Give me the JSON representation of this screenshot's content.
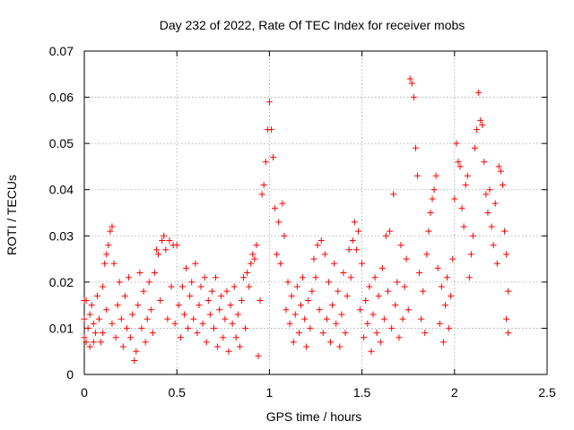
{
  "chart_data": {
    "type": "scatter",
    "title": "Day 232 of 2022, Rate Of TEC Index for receiver mobs",
    "xlabel": "GPS time / hours",
    "ylabel": "ROTI / TECUs",
    "xlim": [
      0,
      2.5
    ],
    "ylim": [
      0,
      0.07
    ],
    "xticks": [
      0,
      0.5,
      1,
      1.5,
      2,
      2.5
    ],
    "xtick_labels": [
      "0",
      "0.5",
      "1",
      "1.5",
      "2",
      "2.5"
    ],
    "yticks": [
      0,
      0.01,
      0.02,
      0.03,
      0.04,
      0.05,
      0.06,
      0.07
    ],
    "ytick_labels": [
      "0",
      "0.01",
      "0.02",
      "0.03",
      "0.04",
      "0.05",
      "0.06",
      "0.07"
    ],
    "grid": true,
    "marker": "plus",
    "color": "#ff0000",
    "series": [
      {
        "points": [
          [
            0.0,
            0.016
          ],
          [
            0.0,
            0.012
          ],
          [
            0.0,
            0.008
          ],
          [
            0.01,
            0.007
          ],
          [
            0.01,
            0.016
          ],
          [
            0.02,
            0.01
          ],
          [
            0.03,
            0.006
          ],
          [
            0.03,
            0.013
          ],
          [
            0.04,
            0.015
          ],
          [
            0.05,
            0.007
          ],
          [
            0.05,
            0.011
          ],
          [
            0.06,
            0.009
          ],
          [
            0.07,
            0.017
          ],
          [
            0.08,
            0.012
          ],
          [
            0.09,
            0.007
          ],
          [
            0.1,
            0.019
          ],
          [
            0.1,
            0.009
          ],
          [
            0.11,
            0.024
          ],
          [
            0.12,
            0.026
          ],
          [
            0.12,
            0.014
          ],
          [
            0.13,
            0.028
          ],
          [
            0.14,
            0.031
          ],
          [
            0.15,
            0.032
          ],
          [
            0.15,
            0.011
          ],
          [
            0.16,
            0.024
          ],
          [
            0.17,
            0.008
          ],
          [
            0.18,
            0.015
          ],
          [
            0.19,
            0.02
          ],
          [
            0.2,
            0.012
          ],
          [
            0.21,
            0.006
          ],
          [
            0.22,
            0.017
          ],
          [
            0.23,
            0.01
          ],
          [
            0.24,
            0.021
          ],
          [
            0.25,
            0.008
          ],
          [
            0.26,
            0.013
          ],
          [
            0.27,
            0.003
          ],
          [
            0.28,
            0.005
          ],
          [
            0.29,
            0.015
          ],
          [
            0.3,
            0.022
          ],
          [
            0.31,
            0.01
          ],
          [
            0.32,
            0.018
          ],
          [
            0.33,
            0.007
          ],
          [
            0.34,
            0.012
          ],
          [
            0.35,
            0.02
          ],
          [
            0.36,
            0.014
          ],
          [
            0.37,
            0.009
          ],
          [
            0.38,
            0.022
          ],
          [
            0.39,
            0.027
          ],
          [
            0.4,
            0.026
          ],
          [
            0.41,
            0.016
          ],
          [
            0.42,
            0.029
          ],
          [
            0.43,
            0.03
          ],
          [
            0.44,
            0.027
          ],
          [
            0.45,
            0.012
          ],
          [
            0.46,
            0.029
          ],
          [
            0.47,
            0.019
          ],
          [
            0.48,
            0.028
          ],
          [
            0.49,
            0.011
          ],
          [
            0.5,
            0.028
          ],
          [
            0.51,
            0.015
          ],
          [
            0.52,
            0.008
          ],
          [
            0.53,
            0.019
          ],
          [
            0.54,
            0.013
          ],
          [
            0.55,
            0.023
          ],
          [
            0.56,
            0.01
          ],
          [
            0.57,
            0.017
          ],
          [
            0.58,
            0.02
          ],
          [
            0.59,
            0.012
          ],
          [
            0.6,
            0.024
          ],
          [
            0.61,
            0.009
          ],
          [
            0.62,
            0.015
          ],
          [
            0.63,
            0.019
          ],
          [
            0.64,
            0.011
          ],
          [
            0.65,
            0.021
          ],
          [
            0.66,
            0.007
          ],
          [
            0.67,
            0.016
          ],
          [
            0.68,
            0.013
          ],
          [
            0.69,
            0.018
          ],
          [
            0.7,
            0.01
          ],
          [
            0.71,
            0.021
          ],
          [
            0.72,
            0.006
          ],
          [
            0.73,
            0.014
          ],
          [
            0.74,
            0.017
          ],
          [
            0.75,
            0.008
          ],
          [
            0.76,
            0.012
          ],
          [
            0.77,
            0.018
          ],
          [
            0.78,
            0.005
          ],
          [
            0.79,
            0.015
          ],
          [
            0.8,
            0.011
          ],
          [
            0.81,
            0.019
          ],
          [
            0.82,
            0.008
          ],
          [
            0.83,
            0.013
          ],
          [
            0.84,
            0.006
          ],
          [
            0.85,
            0.016
          ],
          [
            0.86,
            0.021
          ],
          [
            0.87,
            0.01
          ],
          [
            0.88,
            0.022
          ],
          [
            0.89,
            0.019
          ],
          [
            0.9,
            0.024
          ],
          [
            0.91,
            0.026
          ],
          [
            0.92,
            0.025
          ],
          [
            0.93,
            0.028
          ],
          [
            0.94,
            0.004
          ],
          [
            0.95,
            0.016
          ],
          [
            0.96,
            0.039
          ],
          [
            0.97,
            0.041
          ],
          [
            0.98,
            0.046
          ],
          [
            0.99,
            0.053
          ],
          [
            1.0,
            0.059
          ],
          [
            1.01,
            0.053
          ],
          [
            1.02,
            0.047
          ],
          [
            1.03,
            0.036
          ],
          [
            1.04,
            0.026
          ],
          [
            1.05,
            0.033
          ],
          [
            1.06,
            0.024
          ],
          [
            1.07,
            0.037
          ],
          [
            1.08,
            0.03
          ],
          [
            1.09,
            0.014
          ],
          [
            1.1,
            0.02
          ],
          [
            1.11,
            0.011
          ],
          [
            1.12,
            0.017
          ],
          [
            1.13,
            0.007
          ],
          [
            1.14,
            0.013
          ],
          [
            1.15,
            0.019
          ],
          [
            1.16,
            0.009
          ],
          [
            1.17,
            0.015
          ],
          [
            1.18,
            0.021
          ],
          [
            1.19,
            0.012
          ],
          [
            1.2,
            0.006
          ],
          [
            1.21,
            0.016
          ],
          [
            1.22,
            0.01
          ],
          [
            1.23,
            0.018
          ],
          [
            1.24,
            0.025
          ],
          [
            1.25,
            0.021
          ],
          [
            1.26,
            0.028
          ],
          [
            1.27,
            0.014
          ],
          [
            1.28,
            0.029
          ],
          [
            1.29,
            0.009
          ],
          [
            1.3,
            0.026
          ],
          [
            1.31,
            0.012
          ],
          [
            1.32,
            0.02
          ],
          [
            1.33,
            0.007
          ],
          [
            1.34,
            0.015
          ],
          [
            1.35,
            0.024
          ],
          [
            1.36,
            0.011
          ],
          [
            1.37,
            0.018
          ],
          [
            1.38,
            0.006
          ],
          [
            1.39,
            0.013
          ],
          [
            1.4,
            0.022
          ],
          [
            1.41,
            0.009
          ],
          [
            1.42,
            0.017
          ],
          [
            1.43,
            0.027
          ],
          [
            1.44,
            0.021
          ],
          [
            1.45,
            0.029
          ],
          [
            1.46,
            0.033
          ],
          [
            1.47,
            0.027
          ],
          [
            1.48,
            0.031
          ],
          [
            1.49,
            0.014
          ],
          [
            1.5,
            0.024
          ],
          [
            1.51,
            0.008
          ],
          [
            1.52,
            0.016
          ],
          [
            1.53,
            0.011
          ],
          [
            1.54,
            0.019
          ],
          [
            1.55,
            0.005
          ],
          [
            1.56,
            0.013
          ],
          [
            1.57,
            0.021
          ],
          [
            1.58,
            0.009
          ],
          [
            1.59,
            0.017
          ],
          [
            1.6,
            0.007
          ],
          [
            1.61,
            0.023
          ],
          [
            1.62,
            0.012
          ],
          [
            1.63,
            0.03
          ],
          [
            1.64,
            0.018
          ],
          [
            1.65,
            0.031
          ],
          [
            1.66,
            0.01
          ],
          [
            1.67,
            0.039
          ],
          [
            1.68,
            0.015
          ],
          [
            1.69,
            0.02
          ],
          [
            1.7,
            0.008
          ],
          [
            1.71,
            0.028
          ],
          [
            1.72,
            0.012
          ],
          [
            1.73,
            0.019
          ],
          [
            1.74,
            0.025
          ],
          [
            1.75,
            0.014
          ],
          [
            1.76,
            0.064
          ],
          [
            1.77,
            0.063
          ],
          [
            1.78,
            0.06
          ],
          [
            1.79,
            0.049
          ],
          [
            1.8,
            0.043
          ],
          [
            1.81,
            0.022
          ],
          [
            1.82,
            0.012
          ],
          [
            1.83,
            0.018
          ],
          [
            1.84,
            0.009
          ],
          [
            1.85,
            0.026
          ],
          [
            1.86,
            0.031
          ],
          [
            1.87,
            0.035
          ],
          [
            1.88,
            0.038
          ],
          [
            1.89,
            0.04
          ],
          [
            1.9,
            0.043
          ],
          [
            1.91,
            0.023
          ],
          [
            1.92,
            0.011
          ],
          [
            1.93,
            0.019
          ],
          [
            1.94,
            0.007
          ],
          [
            1.95,
            0.015
          ],
          [
            1.96,
            0.021
          ],
          [
            1.97,
            0.01
          ],
          [
            1.98,
            0.017
          ],
          [
            1.99,
            0.025
          ],
          [
            2.0,
            0.038
          ],
          [
            2.01,
            0.05
          ],
          [
            2.02,
            0.046
          ],
          [
            2.03,
            0.045
          ],
          [
            2.04,
            0.036
          ],
          [
            2.05,
            0.032
          ],
          [
            2.06,
            0.041
          ],
          [
            2.07,
            0.043
          ],
          [
            2.08,
            0.021
          ],
          [
            2.09,
            0.026
          ],
          [
            2.1,
            0.03
          ],
          [
            2.11,
            0.049
          ],
          [
            2.12,
            0.053
          ],
          [
            2.13,
            0.061
          ],
          [
            2.14,
            0.055
          ],
          [
            2.15,
            0.054
          ],
          [
            2.16,
            0.046
          ],
          [
            2.17,
            0.039
          ],
          [
            2.18,
            0.035
          ],
          [
            2.19,
            0.04
          ],
          [
            2.2,
            0.032
          ],
          [
            2.21,
            0.028
          ],
          [
            2.22,
            0.037
          ],
          [
            2.23,
            0.024
          ],
          [
            2.24,
            0.045
          ],
          [
            2.25,
            0.044
          ],
          [
            2.26,
            0.041
          ],
          [
            2.27,
            0.031
          ],
          [
            2.28,
            0.026
          ],
          [
            2.29,
            0.018
          ],
          [
            2.29,
            0.009
          ],
          [
            2.28,
            0.012
          ]
        ]
      }
    ]
  }
}
